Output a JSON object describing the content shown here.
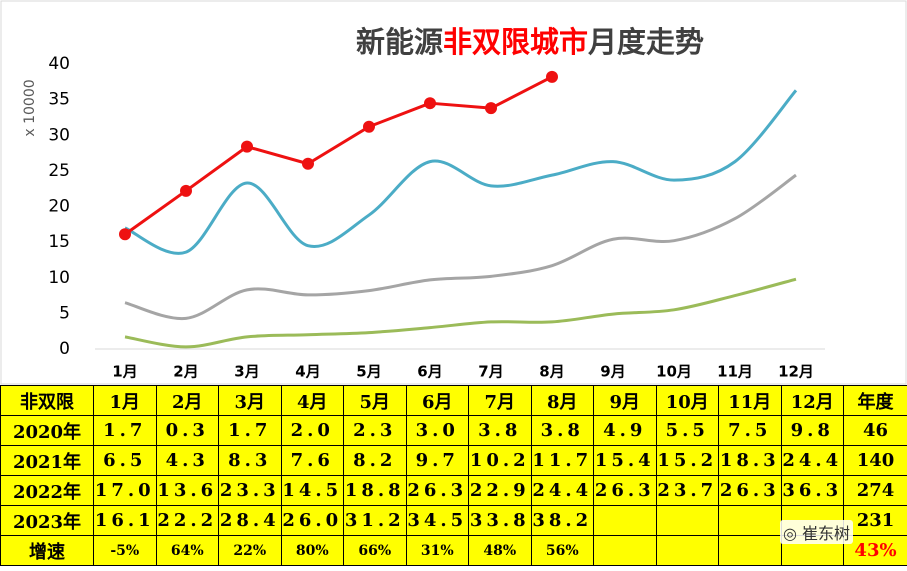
{
  "chart_data": {
    "type": "line",
    "title_parts": [
      "新能源",
      "非双限城市",
      "月度走势"
    ],
    "y_label": "x 10000",
    "categories": [
      "1月",
      "2月",
      "3月",
      "4月",
      "5月",
      "6月",
      "7月",
      "8月",
      "9月",
      "10月",
      "11月",
      "12月"
    ],
    "ylim": [
      0,
      40
    ],
    "yticks": [
      0,
      5,
      10,
      15,
      20,
      25,
      30,
      35,
      40
    ],
    "series": [
      {
        "name": "2020年",
        "color": "#9bbb59",
        "smooth": true,
        "markers": false,
        "values": [
          1.7,
          0.3,
          1.7,
          2.0,
          2.3,
          3.0,
          3.8,
          3.8,
          4.9,
          5.5,
          7.5,
          9.8
        ],
        "value_labels": [
          "1.7",
          "0.3",
          "1.7",
          "2.0",
          "2.3",
          "3.0",
          "3.8",
          "3.8",
          "4.9",
          "5.5",
          "7.5",
          "9.8"
        ]
      },
      {
        "name": "2021年",
        "color": "#a5a5a5",
        "smooth": true,
        "markers": false,
        "values": [
          6.5,
          4.3,
          8.3,
          7.6,
          8.2,
          9.7,
          10.2,
          11.7,
          15.4,
          15.2,
          18.3,
          24.4
        ],
        "value_labels": [
          "6.5",
          "4.3",
          "8.3",
          "7.6",
          "8.2",
          "9.7",
          "10.2",
          "11.7",
          "15.4",
          "15.2",
          "18.3",
          "24.4"
        ]
      },
      {
        "name": "2022年",
        "color": "#4bacc6",
        "smooth": true,
        "markers": false,
        "values": [
          17.0,
          13.6,
          23.3,
          14.5,
          18.8,
          26.3,
          22.9,
          24.4,
          26.3,
          23.7,
          26.3,
          36.3
        ],
        "value_labels": [
          "17.0",
          "13.6",
          "23.3",
          "14.5",
          "18.8",
          "26.3",
          "22.9",
          "24.4",
          "26.3",
          "23.7",
          "26.3",
          "36.3"
        ]
      },
      {
        "name": "2023年",
        "color": "#ee1111",
        "smooth": false,
        "markers": true,
        "values": [
          16.1,
          22.2,
          28.4,
          26.0,
          31.2,
          34.5,
          33.8,
          38.2,
          null,
          null,
          null,
          null
        ],
        "value_labels": [
          "16.1",
          "22.2",
          "28.4",
          "26.0",
          "31.2",
          "34.5",
          "33.8",
          "38.2",
          null,
          null,
          null,
          null
        ]
      }
    ]
  },
  "table": {
    "corner": "非双限",
    "total_header": "年度",
    "totals": [
      "46",
      "140",
      "274",
      "231"
    ],
    "growth_label": "增速",
    "growth": [
      "-5%",
      "64%",
      "22%",
      "80%",
      "66%",
      "31%",
      "48%",
      "56%"
    ],
    "growth_total": "43%"
  },
  "watermark": "崔东树"
}
